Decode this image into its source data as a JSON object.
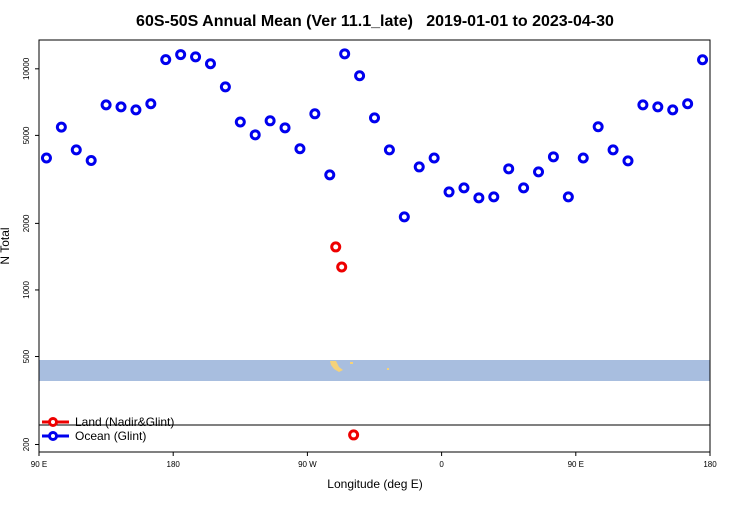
{
  "chart_data": {
    "type": "scatter",
    "title": "60S-50S Annual Mean (Ver 11.1_late)   2019-01-01 to 2023-04-30",
    "x_label": "Longitude (deg E)",
    "y_label": "N Total",
    "log_y": true,
    "legend": "lower left",
    "xlim": [
      90,
      540
    ],
    "ylim": [
      185,
      13500
    ],
    "xticks": [
      {
        "value": 90,
        "label": "90 E"
      },
      180,
      {
        "value": 270,
        "label": "90 W"
      },
      {
        "value": 360,
        "label": "0"
      },
      {
        "value": 450,
        "label": "90 E"
      },
      {
        "value": 540,
        "label": "180"
      }
    ],
    "yticks": [
      200,
      500,
      1000,
      2000,
      5000,
      10000
    ],
    "series": [
      {
        "name": "Land (Nadir&Glint)",
        "color": "#ee0000",
        "x": [
          289,
          293,
          301
        ],
        "values": [
          1565,
          1270,
          221
        ]
      },
      {
        "name": "Ocean (Glint)",
        "color": "#0000ee",
        "x": [
          95,
          105,
          115,
          125,
          135,
          145,
          155,
          165,
          175,
          185,
          195,
          205,
          215,
          225,
          235,
          245,
          255,
          265,
          275,
          285,
          295,
          305,
          315,
          325,
          335,
          345,
          355,
          365,
          375,
          385,
          395,
          405,
          415,
          425,
          435,
          445,
          455,
          465,
          475,
          485,
          495,
          505,
          515,
          525,
          535
        ],
        "values": [
          3950,
          5450,
          4300,
          3850,
          6870,
          6730,
          6520,
          6950,
          11000,
          11600,
          11330,
          10540,
          8290,
          5750,
          5030,
          5820,
          5410,
          4350,
          6260,
          3315,
          11690,
          9300,
          6000,
          4300,
          2140,
          3600,
          3950,
          2775,
          2895,
          2610,
          2635,
          3530,
          2895,
          3420,
          4000,
          2635,
          3950,
          5470,
          4300,
          3835,
          6870,
          6730,
          6520,
          6950,
          10990
        ]
      }
    ]
  }
}
